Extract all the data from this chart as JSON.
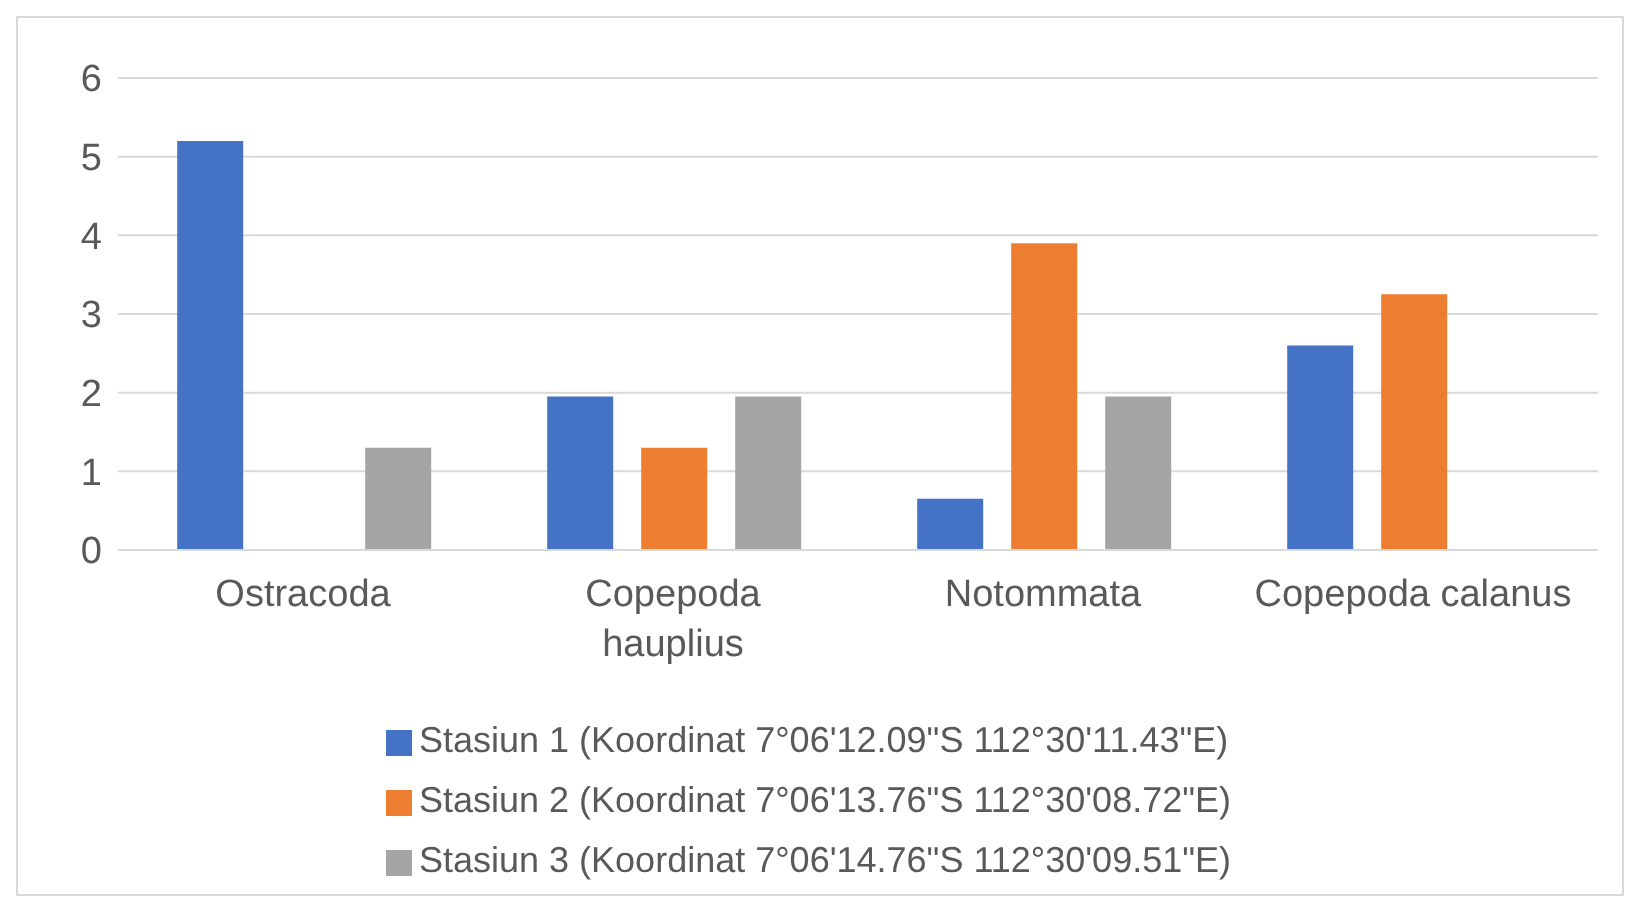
{
  "chart_data": {
    "type": "bar",
    "categories": [
      "Ostracoda",
      "Copepoda hauplius",
      "Notommata",
      "Copepoda calanus"
    ],
    "series": [
      {
        "name": "Stasiun 1 (Koordinat 7°06'12.09\"S 112°30'11.43\"E)",
        "color": "#4472c4",
        "values": [
          5.2,
          1.95,
          0.65,
          2.6
        ]
      },
      {
        "name": "Stasiun 2 (Koordinat 7°06'13.76\"S 112°30'08.72\"E)",
        "color": "#ed7d31",
        "values": [
          null,
          1.3,
          3.9,
          3.25
        ]
      },
      {
        "name": "Stasiun 3 (Koordinat 7°06'14.76\"S 112°30'09.51\"E)",
        "color": "#a5a5a5",
        "values": [
          1.3,
          1.95,
          1.95,
          null
        ]
      }
    ],
    "ylim": [
      0,
      6
    ],
    "yticks": [
      0,
      1,
      2,
      3,
      4,
      5,
      6
    ],
    "grid": "y",
    "legend": "bottom"
  }
}
